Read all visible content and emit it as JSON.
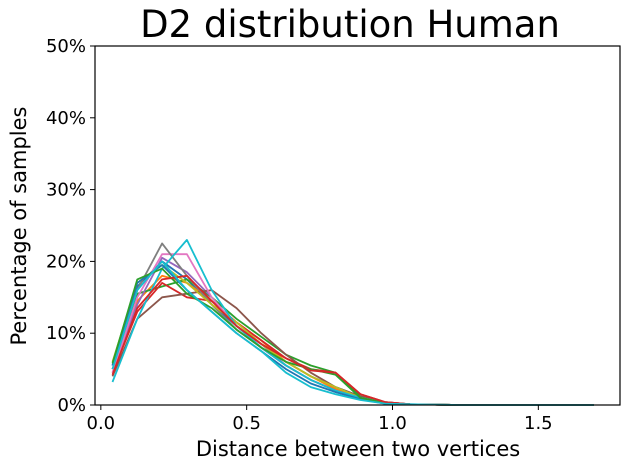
{
  "chart_data": {
    "type": "line",
    "title": "D2 distribution Human",
    "xlabel": "Distance between two vertices",
    "ylabel": "Percentage of samples",
    "xlim": [
      -0.02,
      1.78
    ],
    "ylim": [
      0,
      50
    ],
    "x_ticks": [
      0.0,
      0.5,
      1.0,
      1.5
    ],
    "x_tick_labels": [
      "0.0",
      "0.5",
      "1.0",
      "1.5"
    ],
    "y_ticks": [
      0,
      10,
      20,
      30,
      40,
      50
    ],
    "y_tick_labels": [
      "0%",
      "10%",
      "20%",
      "30%",
      "40%",
      "50%"
    ],
    "grid": false,
    "legend": "none",
    "x": [
      0.04,
      0.125,
      0.21,
      0.295,
      0.38,
      0.465,
      0.55,
      0.635,
      0.72,
      0.805,
      0.89,
      0.975,
      1.06,
      1.145,
      1.23,
      1.315,
      1.4,
      1.485,
      1.57,
      1.655,
      1.69
    ],
    "series": [
      {
        "color": "#1f77b4",
        "values": [
          5.5,
          16.5,
          20.0,
          17.5,
          14.0,
          11.0,
          8.5,
          6.0,
          4.0,
          2.5,
          1.2,
          0.4,
          0.1,
          0.05,
          0,
          0,
          0,
          0,
          0,
          0,
          0
        ]
      },
      {
        "color": "#ff7f0e",
        "values": [
          5.0,
          14.5,
          18.0,
          17.0,
          14.5,
          11.5,
          9.0,
          6.0,
          4.0,
          2.2,
          1.0,
          0.3,
          0.1,
          0.05,
          0,
          0,
          0,
          0,
          0,
          0,
          0
        ]
      },
      {
        "color": "#2ca02c",
        "values": [
          5.0,
          15.5,
          16.5,
          17.5,
          15.0,
          12.0,
          9.5,
          7.0,
          5.5,
          4.5,
          1.2,
          0.3,
          0.1,
          0.05,
          0,
          0,
          0,
          0,
          0,
          0,
          0
        ]
      },
      {
        "color": "#d62728",
        "values": [
          4.5,
          13.0,
          17.0,
          15.0,
          14.5,
          11.5,
          9.0,
          6.5,
          5.0,
          4.5,
          1.5,
          0.4,
          0.1,
          0.05,
          0,
          0,
          0,
          0,
          0,
          0,
          0
        ]
      },
      {
        "color": "#9467bd",
        "values": [
          5.0,
          14.0,
          20.5,
          18.5,
          15.0,
          11.0,
          8.5,
          5.5,
          3.5,
          2.0,
          1.0,
          0.3,
          0.1,
          0.05,
          0,
          0,
          0,
          0,
          0,
          0,
          0
        ]
      },
      {
        "color": "#8c564b",
        "values": [
          4.0,
          12.0,
          15.0,
          15.5,
          16.0,
          13.5,
          10.0,
          7.0,
          4.5,
          2.5,
          1.2,
          0.4,
          0.1,
          0.05,
          0,
          0,
          0,
          0,
          0,
          0,
          0
        ]
      },
      {
        "color": "#e377c2",
        "values": [
          4.5,
          15.0,
          21.0,
          21.0,
          15.0,
          11.0,
          8.0,
          5.5,
          3.5,
          2.0,
          1.0,
          0.3,
          0.1,
          0.05,
          0,
          0,
          0,
          0,
          0,
          0,
          0
        ]
      },
      {
        "color": "#7f7f7f",
        "values": [
          5.5,
          16.0,
          22.5,
          18.0,
          14.0,
          10.5,
          8.0,
          5.5,
          3.5,
          2.0,
          1.0,
          0.3,
          0.1,
          0.05,
          0,
          0,
          0,
          0,
          0,
          0,
          0
        ]
      },
      {
        "color": "#bcbd22",
        "values": [
          6.0,
          17.0,
          19.5,
          17.0,
          14.0,
          11.5,
          8.5,
          6.0,
          4.0,
          2.5,
          1.0,
          0.3,
          0.1,
          0.05,
          0,
          0,
          0,
          0,
          0,
          0,
          0
        ]
      },
      {
        "color": "#17becf",
        "values": [
          3.2,
          12.0,
          19.0,
          23.0,
          16.0,
          11.0,
          8.0,
          5.5,
          3.5,
          2.0,
          1.0,
          0.3,
          0.1,
          0.05,
          0,
          0,
          0,
          0,
          0,
          0,
          0
        ]
      },
      {
        "color": "#1f77b4",
        "values": [
          5.5,
          17.0,
          19.5,
          16.0,
          13.0,
          10.0,
          7.5,
          5.0,
          3.0,
          1.8,
          0.8,
          0.2,
          0.1,
          0.05,
          0,
          0,
          0,
          0,
          0,
          0,
          0
        ]
      },
      {
        "color": "#2ca02c",
        "values": [
          5.8,
          17.5,
          19.0,
          15.5,
          13.5,
          10.5,
          8.0,
          6.0,
          5.0,
          4.2,
          1.0,
          0.3,
          0.1,
          0.05,
          0,
          0,
          0,
          0,
          0,
          0,
          0
        ]
      },
      {
        "color": "#d62728",
        "values": [
          4.2,
          13.5,
          17.5,
          18.0,
          14.5,
          11.0,
          8.5,
          6.5,
          4.8,
          4.5,
          1.5,
          0.4,
          0.1,
          0.05,
          0,
          0,
          0,
          0,
          0,
          0,
          0
        ]
      },
      {
        "color": "#17becf",
        "values": [
          5.0,
          16.0,
          20.0,
          16.0,
          13.0,
          10.0,
          7.5,
          4.5,
          2.5,
          1.5,
          0.7,
          0.2,
          0.1,
          0.05,
          0,
          0,
          0,
          0,
          0,
          0,
          0
        ]
      }
    ]
  }
}
